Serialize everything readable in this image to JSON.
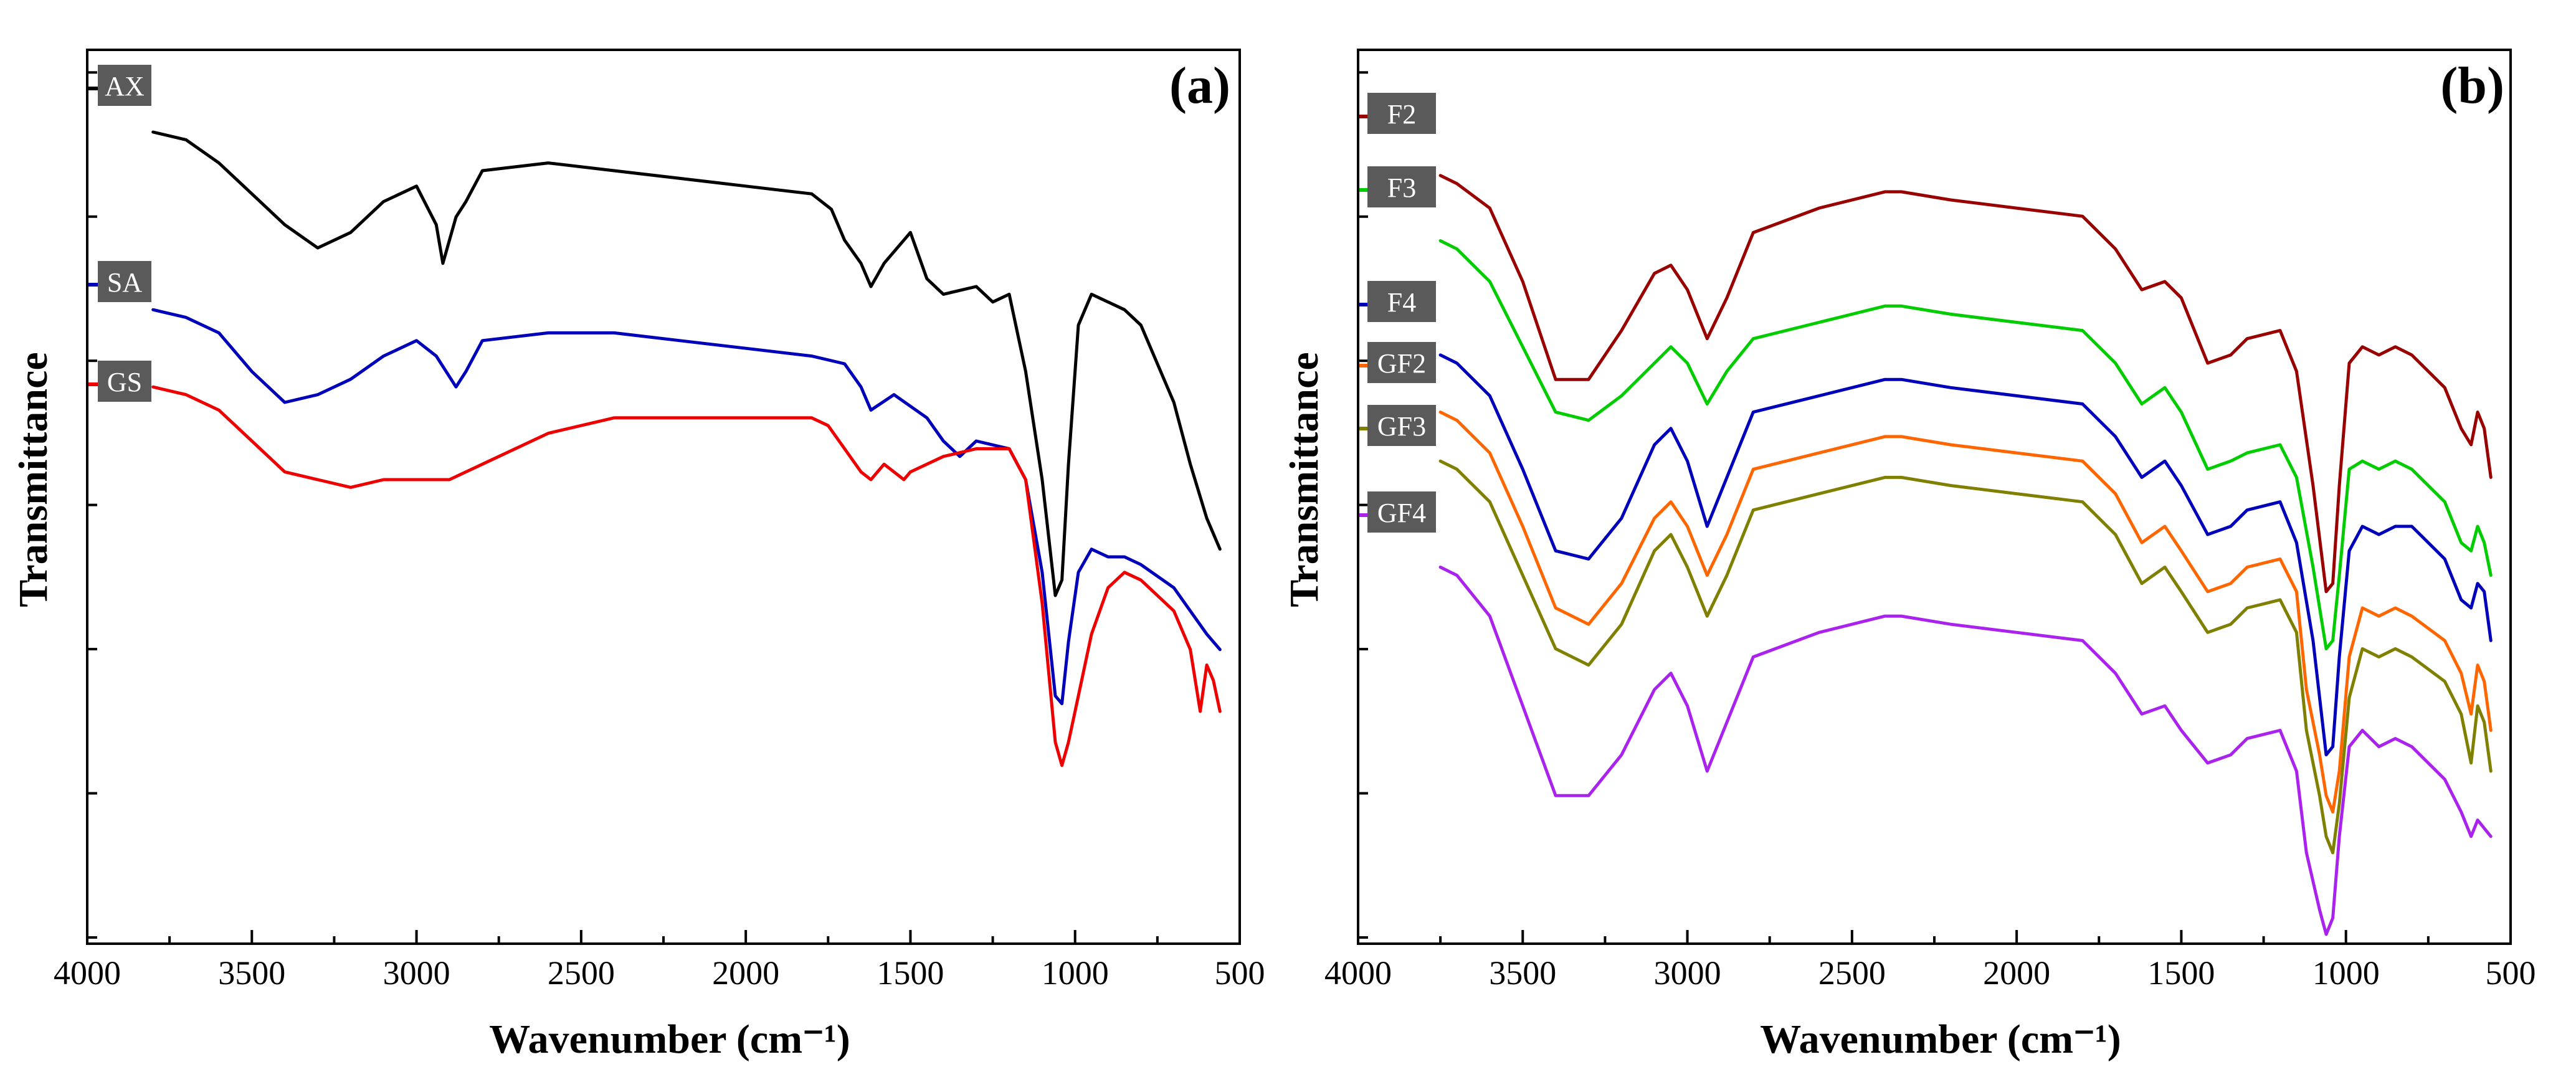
{
  "chart_data": [
    {
      "type": "line",
      "panel_label": "(a)",
      "xlabel": "Wavenumber (cm⁻¹)",
      "ylabel": "Transmittance",
      "xlim": [
        4000,
        500
      ],
      "xticks": [
        4000,
        3500,
        3000,
        2500,
        2000,
        1500,
        1000,
        500
      ],
      "ylim": [
        0,
        100
      ],
      "grid": false,
      "series": [
        {
          "name": "AX",
          "color": "#000000",
          "x": [
            3800,
            3700,
            3600,
            3500,
            3400,
            3300,
            3200,
            3100,
            3000,
            2940,
            2920,
            2880,
            2850,
            2800,
            2600,
            2400,
            2200,
            2000,
            1800,
            1740,
            1700,
            1650,
            1620,
            1580,
            1500,
            1450,
            1400,
            1300,
            1250,
            1200,
            1150,
            1100,
            1060,
            1040,
            1020,
            990,
            950,
            900,
            850,
            800,
            700,
            650,
            600,
            560
          ],
          "y": [
            95,
            94,
            91,
            87,
            83,
            80,
            82,
            86,
            88,
            83,
            78,
            84,
            86,
            90,
            91,
            90,
            89,
            88,
            87,
            85,
            81,
            78,
            75,
            78,
            82,
            76,
            74,
            75,
            73,
            74,
            64,
            50,
            35,
            37,
            52,
            70,
            74,
            73,
            72,
            70,
            60,
            52,
            45,
            41
          ]
        },
        {
          "name": "SA",
          "color": "#0000bb",
          "x": [
            3800,
            3700,
            3600,
            3500,
            3400,
            3300,
            3200,
            3100,
            3000,
            2940,
            2880,
            2850,
            2800,
            2600,
            2400,
            2200,
            2000,
            1800,
            1700,
            1650,
            1620,
            1550,
            1450,
            1400,
            1350,
            1300,
            1200,
            1150,
            1100,
            1060,
            1040,
            1020,
            990,
            950,
            900,
            850,
            800,
            700,
            650,
            600,
            560
          ],
          "y": [
            72,
            71,
            69,
            64,
            60,
            61,
            63,
            66,
            68,
            66,
            62,
            64,
            68,
            69,
            69,
            68,
            67,
            66,
            65,
            62,
            59,
            61,
            58,
            55,
            53,
            55,
            54,
            50,
            38,
            22,
            21,
            29,
            38,
            41,
            40,
            40,
            39,
            36,
            33,
            30,
            28
          ]
        },
        {
          "name": "GS",
          "color": "#ee0000",
          "x": [
            3800,
            3700,
            3600,
            3500,
            3400,
            3300,
            3200,
            3100,
            3000,
            2900,
            2800,
            2600,
            2400,
            2200,
            2000,
            1800,
            1750,
            1650,
            1620,
            1580,
            1550,
            1520,
            1500,
            1400,
            1300,
            1200,
            1150,
            1100,
            1060,
            1040,
            1020,
            990,
            950,
            900,
            850,
            800,
            700,
            650,
            620,
            600,
            580,
            560
          ],
          "y": [
            62,
            61,
            59,
            55,
            51,
            50,
            49,
            50,
            50,
            50,
            52,
            56,
            58,
            58,
            58,
            58,
            57,
            51,
            50,
            52,
            51,
            50,
            51,
            53,
            54,
            54,
            50,
            34,
            16,
            13,
            16,
            22,
            30,
            36,
            38,
            37,
            33,
            28,
            20,
            26,
            24,
            20
          ]
        }
      ]
    },
    {
      "type": "line",
      "panel_label": "(b)",
      "xlabel": "Wavenumber (cm⁻¹)",
      "ylabel": "Transmittance",
      "xlim": [
        4000,
        500
      ],
      "xticks": [
        4000,
        3500,
        3000,
        2500,
        2000,
        1500,
        1000,
        500
      ],
      "ylim": [
        0,
        100
      ],
      "grid": false,
      "series": [
        {
          "name": "F2",
          "color": "#990000",
          "x": [
            3750,
            3700,
            3600,
            3500,
            3400,
            3300,
            3200,
            3100,
            3050,
            3000,
            2940,
            2880,
            2800,
            2600,
            2400,
            2350,
            2200,
            2000,
            1800,
            1700,
            1620,
            1550,
            1500,
            1420,
            1350,
            1300,
            1200,
            1150,
            1100,
            1060,
            1040,
            1020,
            990,
            950,
            900,
            850,
            800,
            700,
            650,
            620,
            600,
            580,
            560
          ],
          "y": [
            93,
            92,
            89,
            80,
            68,
            68,
            74,
            81,
            82,
            79,
            73,
            78,
            86,
            89,
            91,
            91,
            90,
            89,
            88,
            84,
            79,
            80,
            78,
            70,
            71,
            73,
            74,
            69,
            55,
            42,
            43,
            55,
            70,
            72,
            71,
            72,
            71,
            67,
            62,
            60,
            64,
            62,
            56
          ]
        },
        {
          "name": "F3",
          "color": "#00cc00",
          "x": [
            3750,
            3700,
            3600,
            3500,
            3400,
            3300,
            3200,
            3100,
            3050,
            3000,
            2940,
            2880,
            2800,
            2600,
            2400,
            2350,
            2200,
            2000,
            1800,
            1700,
            1620,
            1550,
            1500,
            1420,
            1350,
            1300,
            1200,
            1150,
            1100,
            1060,
            1040,
            1020,
            990,
            950,
            900,
            850,
            800,
            700,
            650,
            620,
            600,
            580,
            560
          ],
          "y": [
            85,
            84,
            80,
            72,
            64,
            63,
            66,
            70,
            72,
            70,
            65,
            69,
            73,
            75,
            77,
            77,
            76,
            75,
            74,
            70,
            65,
            67,
            64,
            57,
            58,
            59,
            60,
            56,
            45,
            35,
            36,
            44,
            57,
            58,
            57,
            58,
            57,
            53,
            48,
            47,
            50,
            48,
            44
          ]
        },
        {
          "name": "F4",
          "color": "#0000bb",
          "x": [
            3750,
            3700,
            3600,
            3500,
            3400,
            3300,
            3200,
            3100,
            3050,
            3000,
            2940,
            2880,
            2800,
            2600,
            2400,
            2350,
            2200,
            2000,
            1800,
            1700,
            1620,
            1550,
            1500,
            1420,
            1350,
            1300,
            1200,
            1150,
            1100,
            1060,
            1040,
            1020,
            990,
            950,
            900,
            850,
            800,
            700,
            650,
            620,
            600,
            580,
            560
          ],
          "y": [
            71,
            70,
            66,
            57,
            47,
            46,
            51,
            60,
            62,
            58,
            50,
            56,
            64,
            66,
            68,
            68,
            67,
            66,
            65,
            61,
            56,
            58,
            55,
            49,
            50,
            52,
            53,
            48,
            36,
            22,
            23,
            34,
            47,
            50,
            49,
            50,
            50,
            46,
            41,
            40,
            43,
            42,
            36
          ]
        },
        {
          "name": "GF2",
          "color": "#ff6600",
          "x": [
            3750,
            3700,
            3600,
            3500,
            3400,
            3300,
            3200,
            3100,
            3050,
            3000,
            2940,
            2880,
            2800,
            2600,
            2400,
            2350,
            2200,
            2000,
            1800,
            1700,
            1620,
            1550,
            1500,
            1420,
            1350,
            1300,
            1200,
            1150,
            1120,
            1080,
            1060,
            1040,
            1020,
            990,
            950,
            900,
            850,
            800,
            700,
            650,
            620,
            600,
            580,
            560
          ],
          "y": [
            64,
            63,
            59,
            50,
            40,
            38,
            43,
            51,
            53,
            50,
            44,
            49,
            57,
            59,
            61,
            61,
            60,
            59,
            58,
            54,
            48,
            50,
            47,
            42,
            43,
            45,
            46,
            42,
            30,
            22,
            17,
            15,
            20,
            34,
            40,
            39,
            40,
            39,
            36,
            32,
            27,
            33,
            31,
            25
          ]
        },
        {
          "name": "GF3",
          "color": "#7f7f00",
          "x": [
            3750,
            3700,
            3600,
            3500,
            3400,
            3300,
            3200,
            3100,
            3050,
            3000,
            2940,
            2880,
            2800,
            2600,
            2400,
            2350,
            2200,
            2000,
            1800,
            1700,
            1620,
            1550,
            1500,
            1420,
            1350,
            1300,
            1200,
            1150,
            1120,
            1080,
            1060,
            1040,
            1020,
            990,
            950,
            900,
            850,
            800,
            700,
            650,
            620,
            600,
            580,
            560
          ],
          "y": [
            58,
            57,
            53,
            44,
            35,
            33,
            38,
            47,
            49,
            45,
            39,
            44,
            52,
            54,
            56,
            56,
            55,
            54,
            53,
            49,
            43,
            45,
            42,
            37,
            38,
            40,
            41,
            37,
            25,
            17,
            12,
            10,
            16,
            29,
            35,
            34,
            35,
            34,
            31,
            27,
            21,
            28,
            26,
            20
          ]
        },
        {
          "name": "GF4",
          "color": "#aa22ee",
          "x": [
            3750,
            3700,
            3600,
            3500,
            3400,
            3300,
            3200,
            3100,
            3050,
            3000,
            2940,
            2880,
            2800,
            2600,
            2400,
            2350,
            2200,
            2000,
            1800,
            1700,
            1620,
            1550,
            1500,
            1420,
            1350,
            1300,
            1200,
            1150,
            1120,
            1080,
            1060,
            1040,
            1020,
            990,
            950,
            900,
            850,
            800,
            700,
            650,
            620,
            600,
            580,
            560
          ],
          "y": [
            45,
            44,
            39,
            28,
            17,
            17,
            22,
            30,
            32,
            28,
            20,
            26,
            34,
            37,
            39,
            39,
            38,
            37,
            36,
            32,
            27,
            28,
            25,
            21,
            22,
            24,
            25,
            20,
            10,
            3,
            0,
            2,
            12,
            23,
            25,
            23,
            24,
            23,
            19,
            15,
            12,
            14,
            13,
            12
          ]
        }
      ]
    }
  ]
}
